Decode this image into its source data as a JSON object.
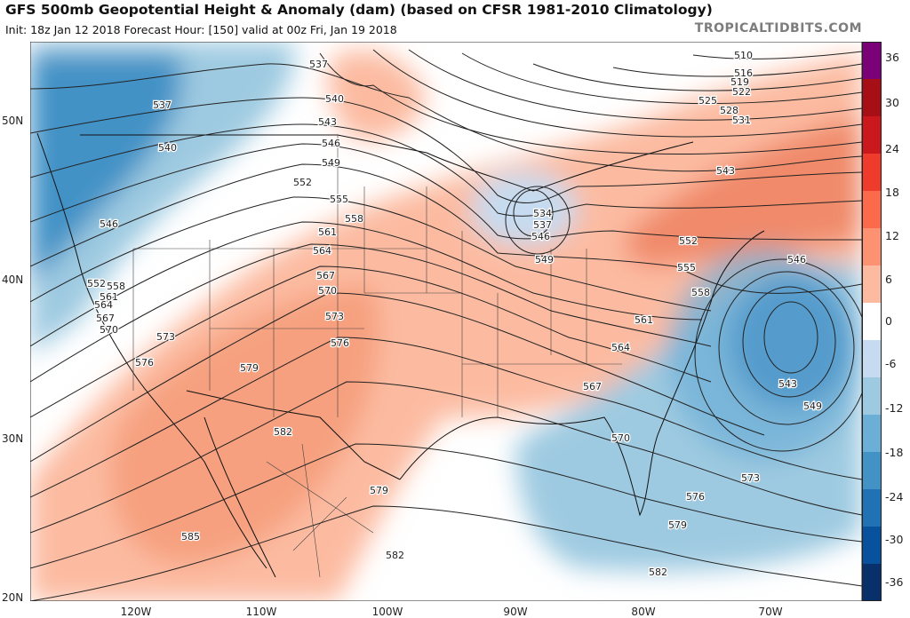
{
  "header": {
    "title": "GFS 500mb Geopotential Height & Anomaly (dam) (based on CFSR 1981-2010 Climatology)",
    "subtitle": "Init: 18z Jan 12 2018   Forecast Hour: [150]   valid at 00z Fri, Jan 19 2018",
    "brand": "TROPICALTIDBITS.COM"
  },
  "map": {
    "lat_labels": [
      "50N",
      "40N",
      "30N",
      "20N"
    ],
    "lon_labels": [
      "120W",
      "110W",
      "100W",
      "90W",
      "80W",
      "70W"
    ],
    "contour_labels": [
      "510",
      "516",
      "519",
      "522",
      "525",
      "528",
      "531",
      "534",
      "537",
      "537",
      "537",
      "540",
      "540",
      "543",
      "543",
      "543",
      "546",
      "546",
      "546",
      "546",
      "549",
      "549",
      "549",
      "552",
      "552",
      "552",
      "555",
      "555",
      "558",
      "558",
      "558",
      "561",
      "561",
      "561",
      "564",
      "564",
      "564",
      "567",
      "567",
      "567",
      "570",
      "570",
      "570",
      "573",
      "573",
      "573",
      "576",
      "576",
      "576",
      "579",
      "579",
      "579",
      "582",
      "582",
      "582",
      "585"
    ]
  },
  "colorbar": {
    "ticks": [
      "36",
      "30",
      "24",
      "18",
      "12",
      "6",
      "0",
      "-6",
      "-12",
      "-18",
      "-24",
      "-30",
      "-36"
    ],
    "colors": [
      "#7a0177",
      "#a50f15",
      "#cb181d",
      "#ef3b2c",
      "#fb6a4a",
      "#fc9272",
      "#fcbba1",
      "#ffffff",
      "#c6dbef",
      "#9ecae1",
      "#6baed6",
      "#4292c6",
      "#2171b5",
      "#08519c",
      "#08306b"
    ]
  }
}
